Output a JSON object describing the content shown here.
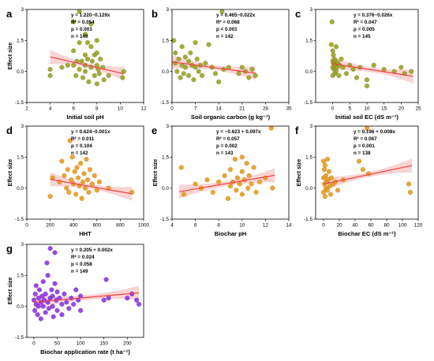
{
  "figure": {
    "colors": {
      "fit_line": "#ee4444",
      "ci_band": "#f5a0a0",
      "axis": "#000000"
    }
  },
  "chart_data": [
    {
      "type": "scatter",
      "panel": "a",
      "xlabel": "Initial soil pH",
      "ylabel": "Effect size",
      "xlim": [
        2,
        12
      ],
      "ylim": [
        -1.5,
        3.0
      ],
      "xticks": [
        2,
        4,
        6,
        8,
        10,
        12
      ],
      "yticks": [
        -1.5,
        0.0,
        1.5,
        3.0
      ],
      "point_color": "#9aa322",
      "stats": {
        "equation": "y = 1.220−0.129x",
        "r2": "R² = 0.054",
        "p": "p = 0.003",
        "n": "n = 149"
      },
      "fit": {
        "intercept": 1.22,
        "slope": -0.129,
        "x_range": [
          4,
          10.3
        ]
      },
      "points": [
        [
          4,
          -0.2
        ],
        [
          4,
          0.1
        ],
        [
          5,
          0.2
        ],
        [
          5.5,
          0.3
        ],
        [
          6,
          2.4
        ],
        [
          6,
          1.0
        ],
        [
          6,
          0.3
        ],
        [
          6.2,
          -0.2
        ],
        [
          6.3,
          0.5
        ],
        [
          6.5,
          2.9
        ],
        [
          6.5,
          1.4
        ],
        [
          6.5,
          0.1
        ],
        [
          6.7,
          0.5
        ],
        [
          6.8,
          -0.3
        ],
        [
          7,
          1.8
        ],
        [
          7,
          0.8
        ],
        [
          7,
          0.3
        ],
        [
          7,
          0
        ],
        [
          7.2,
          1.4
        ],
        [
          7.2,
          0.6
        ],
        [
          7.3,
          -0.5
        ],
        [
          7.5,
          2.3
        ],
        [
          7.5,
          1.2
        ],
        [
          7.5,
          0.2
        ],
        [
          7.6,
          0.5
        ],
        [
          7.8,
          0.8
        ],
        [
          7.8,
          -0.2
        ],
        [
          8,
          1.5
        ],
        [
          8,
          0.9
        ],
        [
          8,
          0.3
        ],
        [
          8,
          -0.6
        ],
        [
          8.1,
          0.1
        ],
        [
          8.2,
          -0.1
        ],
        [
          8.3,
          0.6
        ],
        [
          8.5,
          0.2
        ],
        [
          8.6,
          -0.4
        ],
        [
          9,
          -0.2
        ],
        [
          10.2,
          -0.3
        ],
        [
          10.3,
          0
        ]
      ]
    },
    {
      "type": "scatter",
      "panel": "b",
      "xlabel": "Soil organic carbon (g kg⁻¹)",
      "ylabel": "",
      "xlim": [
        0,
        35
      ],
      "ylim": [
        -1.5,
        3.0
      ],
      "xticks": [
        0,
        7,
        14,
        21,
        28,
        35
      ],
      "yticks": [
        -1.5,
        0.0,
        1.5,
        3.0
      ],
      "point_color": "#9aa322",
      "stats": {
        "equation": "y = 0.465−0.022x",
        "r2": "R² = 0.068",
        "p": "p < 0.001",
        "n": "n = 142"
      },
      "fit": {
        "intercept": 0.465,
        "slope": -0.022,
        "x_range": [
          0,
          25
        ]
      },
      "points": [
        [
          0.5,
          1.5
        ],
        [
          1,
          0.9
        ],
        [
          1,
          0.4
        ],
        [
          1.5,
          0
        ],
        [
          2,
          0.6
        ],
        [
          2.5,
          -0.3
        ],
        [
          3,
          1.2
        ],
        [
          3,
          0.3
        ],
        [
          3.5,
          -0.1
        ],
        [
          4,
          0.7
        ],
        [
          4,
          0.2
        ],
        [
          5,
          0.5
        ],
        [
          5,
          -0.2
        ],
        [
          5.5,
          0.9
        ],
        [
          6,
          0.3
        ],
        [
          6.5,
          -0.4
        ],
        [
          7,
          1.4
        ],
        [
          7,
          0.2
        ],
        [
          7.5,
          0.6
        ],
        [
          8,
          0
        ],
        [
          8.5,
          0.3
        ],
        [
          9,
          -0.2
        ],
        [
          10,
          0.4
        ],
        [
          11,
          1.3
        ],
        [
          12,
          0.2
        ],
        [
          13,
          -0.1
        ],
        [
          14,
          -0.5
        ],
        [
          15,
          2.9
        ],
        [
          15.5,
          0.1
        ],
        [
          17,
          0.2
        ],
        [
          20,
          -0.1
        ],
        [
          21,
          0.2
        ],
        [
          22,
          0
        ],
        [
          23,
          -0.3
        ],
        [
          24,
          0.1
        ],
        [
          25,
          -0.2
        ]
      ]
    },
    {
      "type": "scatter",
      "panel": "c",
      "xlabel": "Initial soil EC (dS m⁻¹)",
      "ylabel": "",
      "xlim": [
        -5,
        25
      ],
      "ylim": [
        -1.5,
        3.0
      ],
      "xticks": [
        0,
        5,
        10,
        15,
        20,
        25
      ],
      "yticks": [
        -1.5,
        0.0,
        1.5,
        3.0
      ],
      "point_color": "#9aa322",
      "stats": {
        "equation": "y = 0.376−0.026x",
        "r2": "R² = 0.047",
        "p": "p = 0.005",
        "n": "n = 145"
      },
      "fit": {
        "intercept": 0.376,
        "slope": -0.026,
        "x_range": [
          -0.5,
          23.5
        ]
      },
      "points": [
        [
          -0.4,
          1.3
        ],
        [
          -0.2,
          2.4
        ],
        [
          0,
          1.0
        ],
        [
          0,
          0.5
        ],
        [
          0,
          0.2
        ],
        [
          0,
          -0.2
        ],
        [
          0.2,
          0.8
        ],
        [
          0.3,
          0.4
        ],
        [
          0.4,
          0.1
        ],
        [
          0.5,
          0.6
        ],
        [
          0.6,
          -0.1
        ],
        [
          0.8,
          0.3
        ],
        [
          1,
          1.2
        ],
        [
          1,
          0.5
        ],
        [
          1,
          0
        ],
        [
          1.2,
          0.2
        ],
        [
          1.5,
          0.4
        ],
        [
          1.8,
          -0.2
        ],
        [
          2,
          0.3
        ],
        [
          2.5,
          0.6
        ],
        [
          3,
          0.2
        ],
        [
          4,
          -0.1
        ],
        [
          5,
          0.3
        ],
        [
          6,
          0.1
        ],
        [
          7,
          -0.3
        ],
        [
          8,
          0.2
        ],
        [
          10,
          -0.7
        ],
        [
          10,
          -0.4
        ],
        [
          12,
          0.3
        ],
        [
          15,
          0.1
        ],
        [
          18,
          0
        ],
        [
          20,
          0.2
        ],
        [
          21,
          -0.1
        ],
        [
          23,
          0
        ]
      ]
    },
    {
      "type": "scatter",
      "panel": "d",
      "xlabel": "HHT",
      "ylabel": "Effect size",
      "xlim": [
        0,
        1000
      ],
      "ylim": [
        -1.5,
        3.0
      ],
      "xticks": [
        0,
        200,
        400,
        600,
        800,
        1000
      ],
      "yticks": [
        -1.5,
        0.0,
        1.5,
        3.0
      ],
      "point_color": "#e89b1c",
      "stats": {
        "equation": "y = 0.624−0.001x",
        "r2": "R² = 0.011",
        "p": "p = 0.104",
        "n": "n = 142"
      },
      "fit": {
        "intercept": 0.624,
        "slope": -0.001,
        "x_range": [
          200,
          900
        ]
      },
      "points": [
        [
          200,
          -0.4
        ],
        [
          220,
          0.5
        ],
        [
          280,
          0.3
        ],
        [
          300,
          1.3
        ],
        [
          320,
          0.6
        ],
        [
          340,
          0
        ],
        [
          350,
          0.9
        ],
        [
          360,
          -0.2
        ],
        [
          370,
          2.3
        ],
        [
          380,
          0.4
        ],
        [
          390,
          1.5
        ],
        [
          400,
          0.2
        ],
        [
          410,
          0.8
        ],
        [
          420,
          -0.3
        ],
        [
          430,
          1.0
        ],
        [
          440,
          0.5
        ],
        [
          450,
          0.1
        ],
        [
          460,
          1.2
        ],
        [
          470,
          -0.5
        ],
        [
          480,
          0.3
        ],
        [
          490,
          0.7
        ],
        [
          500,
          0
        ],
        [
          510,
          1.4
        ],
        [
          520,
          0.4
        ],
        [
          530,
          -0.2
        ],
        [
          540,
          0.9
        ],
        [
          560,
          0.2
        ],
        [
          580,
          0.6
        ],
        [
          600,
          -0.1
        ],
        [
          620,
          0.3
        ],
        [
          700,
          0
        ],
        [
          900,
          -0.2
        ]
      ]
    },
    {
      "type": "scatter",
      "panel": "e",
      "xlabel": "Biochar pH",
      "ylabel": "Effect size",
      "xlim": [
        4,
        14
      ],
      "ylim": [
        -1.5,
        3.0
      ],
      "xticks": [
        4,
        6,
        8,
        10,
        12,
        14
      ],
      "yticks": [
        -1.5,
        0.0,
        1.5,
        3.0
      ],
      "point_color": "#e89b1c",
      "stats": {
        "equation": "y = −0.623 + 0.097x",
        "r2": "R² = 0.057",
        "p": "p = 0.002",
        "n": "n = 143"
      },
      "fit": {
        "intercept": -0.623,
        "slope": 0.097,
        "x_range": [
          4.6,
          12.8
        ]
      },
      "points": [
        [
          4.8,
          1.0
        ],
        [
          5,
          -0.3
        ],
        [
          6,
          0.2
        ],
        [
          6.5,
          0
        ],
        [
          7,
          0.4
        ],
        [
          7.5,
          -0.2
        ],
        [
          8,
          0.3
        ],
        [
          8.5,
          0.6
        ],
        [
          8.8,
          -0.5
        ],
        [
          9,
          0.1
        ],
        [
          9,
          0.9
        ],
        [
          9.2,
          0.3
        ],
        [
          9.4,
          1.4
        ],
        [
          9.5,
          -0.1
        ],
        [
          9.6,
          0.5
        ],
        [
          9.8,
          0.2
        ],
        [
          10,
          1.5
        ],
        [
          10,
          0.8
        ],
        [
          10,
          -0.3
        ],
        [
          10.2,
          0.4
        ],
        [
          10.4,
          1.2
        ],
        [
          10.5,
          0
        ],
        [
          10.6,
          0.6
        ],
        [
          10.8,
          0.2
        ],
        [
          11,
          1.0
        ],
        [
          11.2,
          -0.2
        ],
        [
          11.5,
          0.3
        ],
        [
          12,
          0.5
        ],
        [
          12.5,
          2.9
        ],
        [
          12.6,
          0
        ]
      ]
    },
    {
      "type": "scatter",
      "panel": "f",
      "xlabel": "Biochar EC (dS m⁻¹)",
      "ylabel": "Effect size",
      "xlim": [
        -10,
        120
      ],
      "ylim": [
        -1.5,
        3.0
      ],
      "xticks": [
        0,
        20,
        40,
        60,
        80,
        100,
        120
      ],
      "yticks": [
        -1.5,
        0.0,
        1.5,
        3.0
      ],
      "point_color": "#e89b1c",
      "stats": {
        "equation": "y = 0.196 + 0.008x",
        "r2": "R² = 0.067",
        "p": "p = 0.001",
        "n": "n = 138"
      },
      "fit": {
        "intercept": 0.196,
        "slope": 0.008,
        "x_range": [
          0,
          112
        ]
      },
      "points": [
        [
          0,
          1.3
        ],
        [
          0,
          0.5
        ],
        [
          0,
          -0.2
        ],
        [
          1,
          0.9
        ],
        [
          1,
          0.2
        ],
        [
          2,
          1.1
        ],
        [
          2,
          -0.4
        ],
        [
          3,
          0.6
        ],
        [
          3,
          0
        ],
        [
          4,
          0.3
        ],
        [
          5,
          1.4
        ],
        [
          5,
          -0.1
        ],
        [
          6,
          0.4
        ],
        [
          7,
          0.8
        ],
        [
          8,
          0.1
        ],
        [
          9,
          -0.3
        ],
        [
          10,
          0.5
        ],
        [
          12,
          0.2
        ],
        [
          15,
          0.3
        ],
        [
          18,
          -0.1
        ],
        [
          25,
          0.4
        ],
        [
          45,
          1.3
        ],
        [
          50,
          0.9
        ],
        [
          55,
          2.9
        ],
        [
          57,
          0.7
        ],
        [
          108,
          0.2
        ],
        [
          110,
          -0.2
        ]
      ]
    },
    {
      "type": "scatter",
      "panel": "g",
      "xlabel": "Biochar application rate (t ha⁻¹)",
      "ylabel": "Effect size",
      "xlim": [
        -15,
        235
      ],
      "ylim": [
        -1.5,
        3.0
      ],
      "xticks": [
        0,
        50,
        100,
        150,
        200
      ],
      "yticks": [
        -1.5,
        0.0,
        1.5,
        3.0
      ],
      "point_color": "#8c34e8",
      "stats": {
        "equation": "y = 0.205 + 0.002x",
        "r2": "R² = 0.024",
        "p": "p = 0.058",
        "n": "n = 149"
      },
      "fit": {
        "intercept": 0.205,
        "slope": 0.002,
        "x_range": [
          0,
          225
        ]
      },
      "points": [
        [
          0,
          0.3
        ],
        [
          2,
          -0.2
        ],
        [
          3,
          0.6
        ],
        [
          5,
          0.1
        ],
        [
          5,
          1.0
        ],
        [
          8,
          -0.4
        ],
        [
          10,
          0.4
        ],
        [
          10,
          0
        ],
        [
          12,
          0.8
        ],
        [
          15,
          0.2
        ],
        [
          15,
          -0.6
        ],
        [
          18,
          0.5
        ],
        [
          20,
          1.2
        ],
        [
          20,
          0
        ],
        [
          22,
          0.3
        ],
        [
          25,
          -0.3
        ],
        [
          25,
          0.6
        ],
        [
          28,
          2.1
        ],
        [
          30,
          0.2
        ],
        [
          30,
          1.5
        ],
        [
          32,
          -0.1
        ],
        [
          35,
          0.4
        ],
        [
          35,
          2.8
        ],
        [
          38,
          0.8
        ],
        [
          40,
          0
        ],
        [
          40,
          0.5
        ],
        [
          42,
          -0.5
        ],
        [
          45,
          1.1
        ],
        [
          45,
          2.6
        ],
        [
          48,
          0.3
        ],
        [
          50,
          0.7
        ],
        [
          50,
          -0.2
        ],
        [
          55,
          0.4
        ],
        [
          60,
          0.1
        ],
        [
          60,
          -0.4
        ],
        [
          65,
          0.6
        ],
        [
          70,
          0.2
        ],
        [
          75,
          -0.1
        ],
        [
          80,
          0.4
        ],
        [
          85,
          0.1
        ],
        [
          90,
          0.8
        ],
        [
          95,
          0.3
        ],
        [
          100,
          -0.2
        ],
        [
          100,
          0.5
        ],
        [
          150,
          0.3
        ],
        [
          155,
          1.3
        ],
        [
          160,
          0.4
        ],
        [
          200,
          0.4
        ],
        [
          210,
          0.6
        ],
        [
          220,
          0.3
        ],
        [
          225,
          0.1
        ]
      ]
    }
  ]
}
